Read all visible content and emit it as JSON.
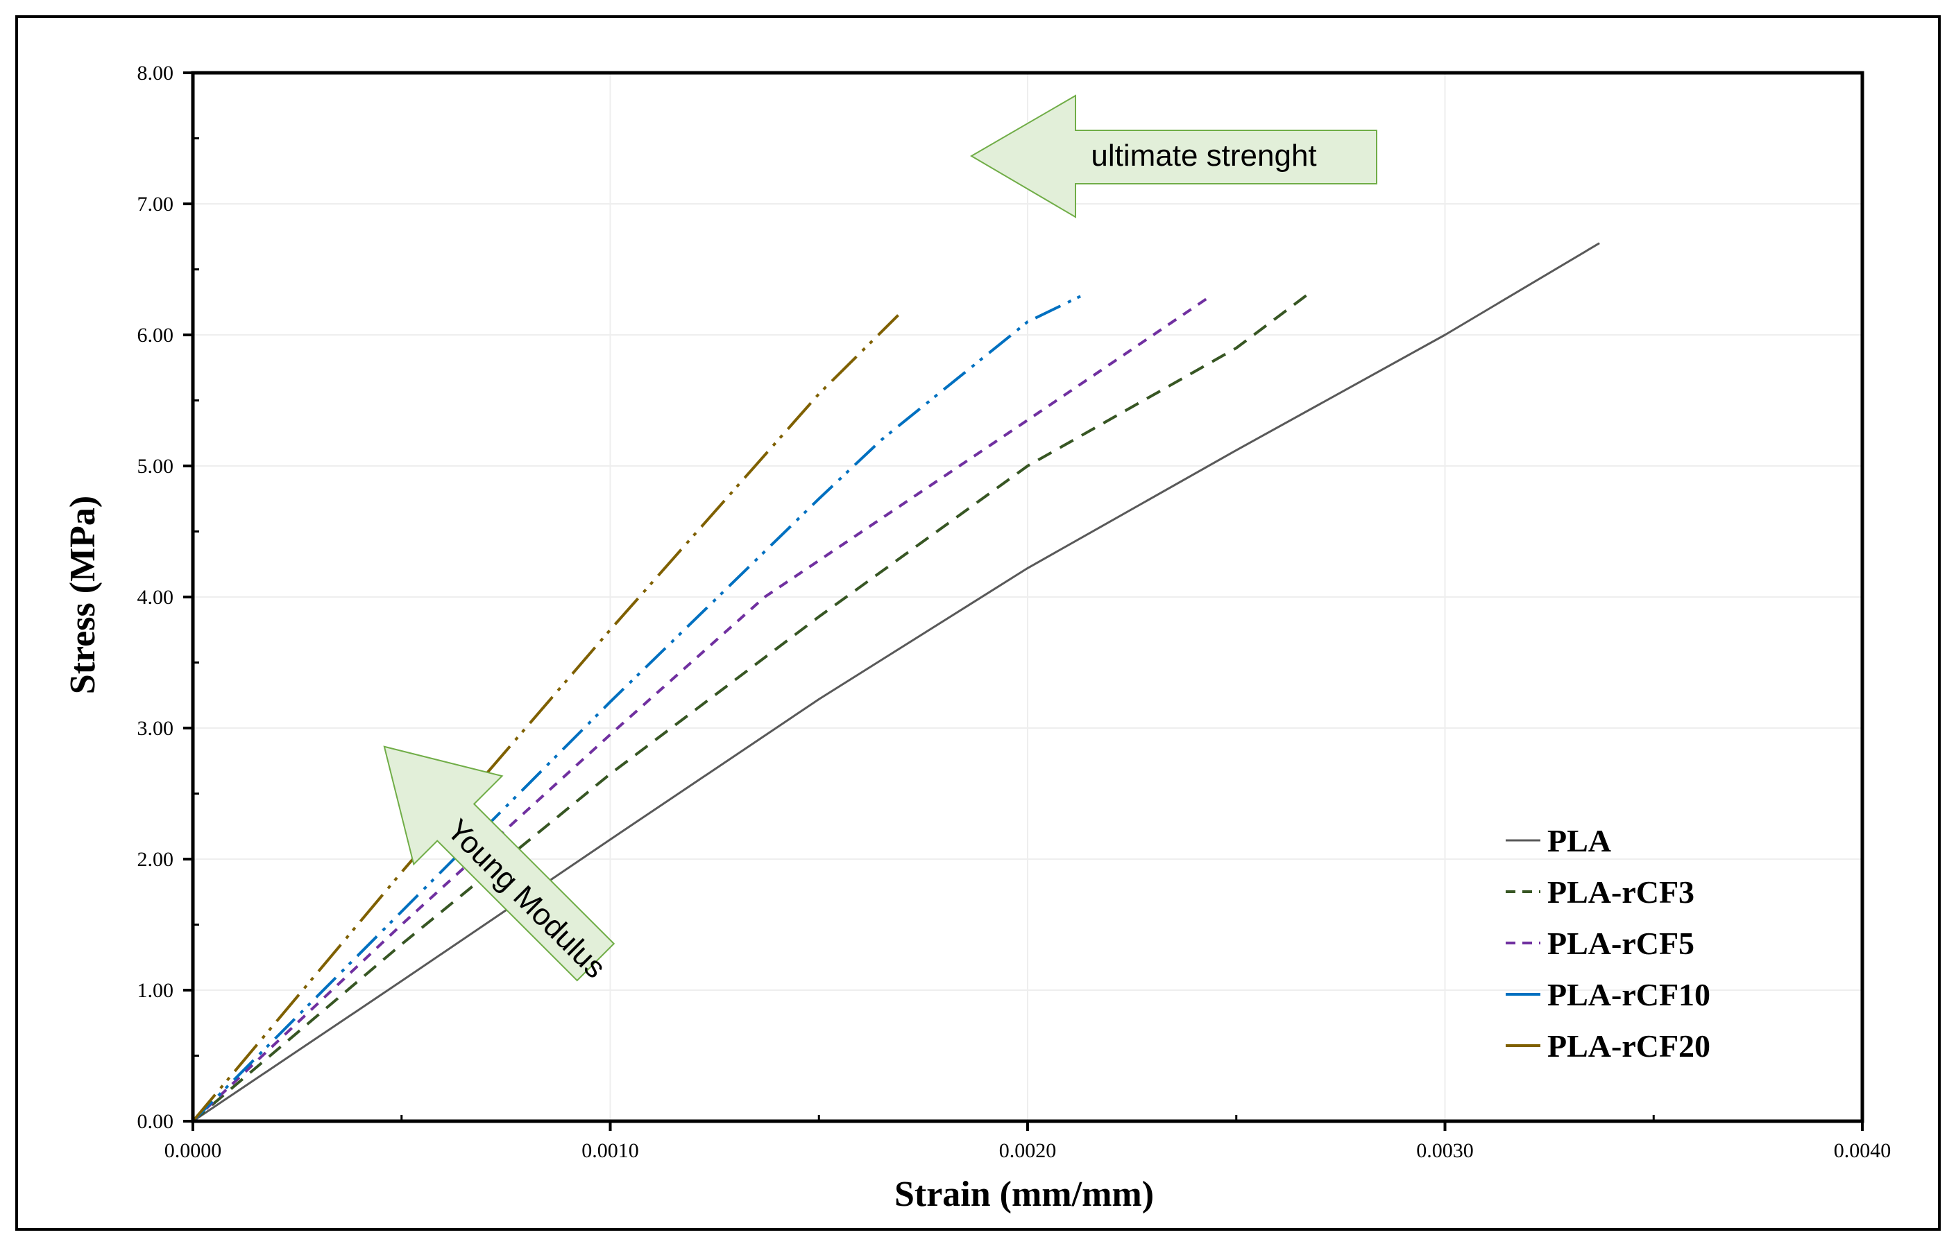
{
  "chart_data": {
    "type": "line",
    "xlabel": "Strain (mm/mm)",
    "ylabel": "Stress (MPa)",
    "xlim": [
      0,
      0.004
    ],
    "ylim": [
      0,
      8
    ],
    "x_ticks": [
      "0.0000",
      "0.0010",
      "0.0020",
      "0.0030",
      "0.0040"
    ],
    "y_ticks": [
      "0.00",
      "1.00",
      "2.00",
      "3.00",
      "4.00",
      "5.00",
      "6.00",
      "7.00",
      "8.00"
    ],
    "grid": true,
    "legend_position": "bottom-right",
    "series": [
      {
        "name": "PLA",
        "color": "#595959",
        "dash": "solid",
        "x": [
          0,
          0.0005,
          0.001,
          0.0015,
          0.002,
          0.0025,
          0.003,
          0.00337
        ],
        "y": [
          0,
          1.07,
          2.15,
          3.22,
          4.22,
          5.12,
          6.0,
          6.7
        ]
      },
      {
        "name": "PLA-rCF3",
        "color": "#375623",
        "dash": "dash",
        "x": [
          0,
          0.0005,
          0.001,
          0.0015,
          0.002,
          0.0025,
          0.00268
        ],
        "y": [
          0,
          1.35,
          2.65,
          3.85,
          5.0,
          5.9,
          6.33
        ]
      },
      {
        "name": "PLA-rCF5",
        "color": "#7030A0",
        "dash": "dash-short",
        "x": [
          0,
          0.0005,
          0.001,
          0.00137,
          0.002,
          0.00244
        ],
        "y": [
          0,
          1.5,
          2.95,
          4.0,
          5.35,
          6.3
        ]
      },
      {
        "name": "PLA-rCF10",
        "color": "#0070C0",
        "dash": "dash-dot-dot",
        "x": [
          0,
          0.0005,
          0.001,
          0.0015,
          0.00165,
          0.002,
          0.00213
        ],
        "y": [
          0,
          1.6,
          3.2,
          4.75,
          5.2,
          6.1,
          6.3
        ]
      },
      {
        "name": "PLA-rCF20",
        "color": "#7F6000",
        "dash": "long-dash-dot-dot",
        "x": [
          0,
          0.0005,
          0.001,
          0.0015,
          0.00169
        ],
        "y": [
          0,
          1.9,
          3.75,
          5.55,
          6.15
        ]
      }
    ],
    "annotations": [
      {
        "text": "ultimate strenght",
        "color": "#E2EFD9",
        "border": "#70AD47"
      },
      {
        "text": "Young Modulus",
        "color": "#E2EFD9",
        "border": "#70AD47"
      }
    ]
  }
}
